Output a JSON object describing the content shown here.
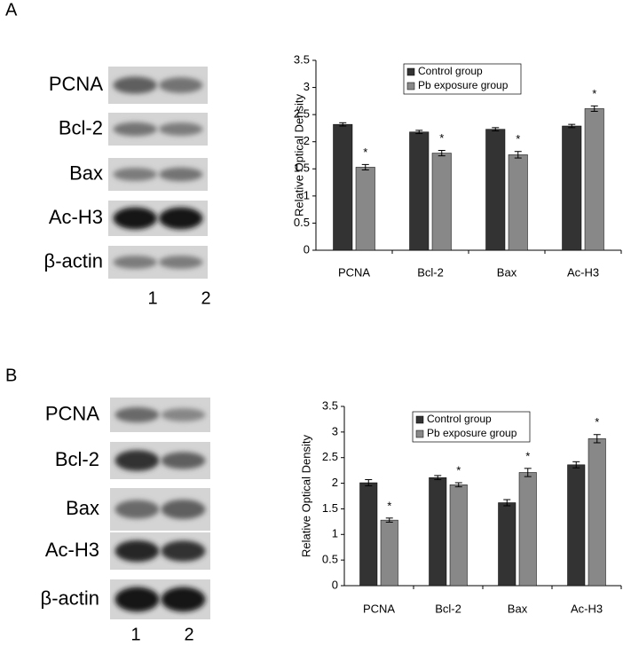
{
  "panels": [
    {
      "label": "A",
      "proteins": [
        "PCNA",
        "Bcl-2",
        "Bax",
        "Ac-H3",
        "β-actin"
      ],
      "lanes": [
        "1",
        "2"
      ]
    },
    {
      "label": "B",
      "proteins": [
        "PCNA",
        "Bcl-2",
        "Bax",
        "Ac-H3",
        "β-actin"
      ],
      "lanes": [
        "1",
        "2"
      ]
    }
  ],
  "chart_data": [
    {
      "type": "bar",
      "ylabel": "Relative Optical Density",
      "categories": [
        "PCNA",
        "Bcl-2",
        "Bax",
        "Ac-H3"
      ],
      "series": [
        {
          "name": "Control group",
          "color": "#333333",
          "values": [
            2.32,
            2.18,
            2.23,
            2.29
          ],
          "errors": [
            0.03,
            0.03,
            0.03,
            0.03
          ]
        },
        {
          "name": "Pb exposure group",
          "color": "#888888",
          "values": [
            1.53,
            1.79,
            1.76,
            2.61
          ],
          "errors": [
            0.05,
            0.05,
            0.06,
            0.05
          ],
          "significance": [
            "*",
            "*",
            "*",
            "*"
          ]
        }
      ],
      "ylim": [
        0,
        3.5
      ],
      "yticks": [
        0,
        0.5,
        1,
        1.5,
        2,
        2.5,
        3,
        3.5
      ],
      "grid": false,
      "legend": "top-left"
    },
    {
      "type": "bar",
      "ylabel": "Relative Optical Density",
      "categories": [
        "PCNA",
        "Bcl-2",
        "Bax",
        "Ac-H3"
      ],
      "series": [
        {
          "name": "Control group",
          "color": "#333333",
          "values": [
            2.01,
            2.11,
            1.62,
            2.36
          ],
          "errors": [
            0.06,
            0.04,
            0.06,
            0.06
          ]
        },
        {
          "name": "Pb exposure group",
          "color": "#888888",
          "values": [
            1.28,
            1.97,
            2.21,
            2.87
          ],
          "errors": [
            0.04,
            0.04,
            0.08,
            0.08
          ],
          "significance": [
            "*",
            "*",
            "*",
            "*"
          ]
        }
      ],
      "ylim": [
        0,
        3.5
      ],
      "yticks": [
        0,
        0.5,
        1,
        1.5,
        2,
        2.5,
        3,
        3.5
      ],
      "grid": false,
      "legend": "top-left"
    }
  ]
}
